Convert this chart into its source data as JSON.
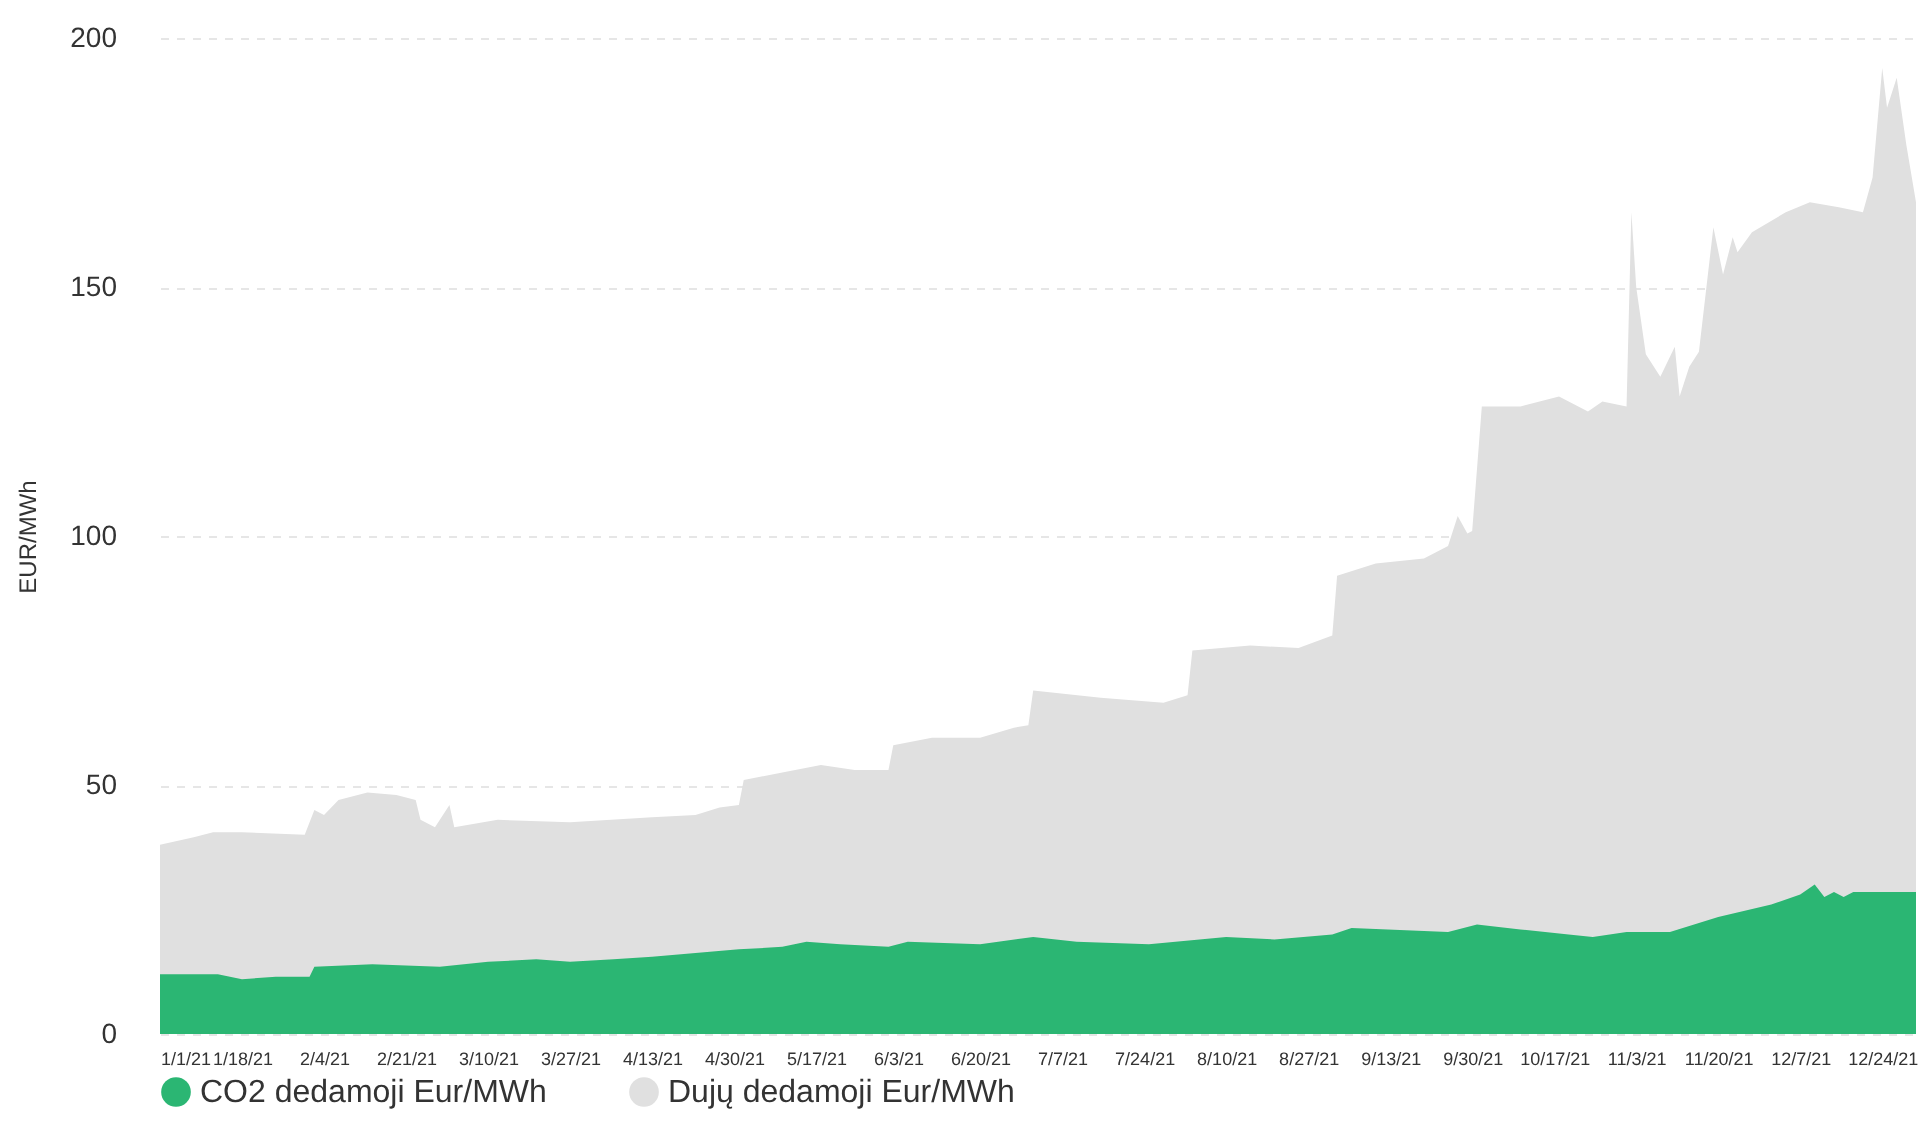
{
  "chart_data": {
    "type": "area",
    "ylabel": "EUR/MWh",
    "legend": "bottom",
    "grid": "y",
    "xlim": [
      "2021-01-01",
      "2021-12-31"
    ],
    "ylim": [
      0,
      200
    ],
    "yticks": [
      0,
      50,
      100,
      150,
      200
    ],
    "xticks": [
      {
        "value": "2021-01-01",
        "label": "1/1/21"
      },
      {
        "value": "2021-01-18",
        "label": "1/18/21"
      },
      {
        "value": "2021-02-04",
        "label": "2/4/21"
      },
      {
        "value": "2021-02-21",
        "label": "2/21/21"
      },
      {
        "value": "2021-03-10",
        "label": "3/10/21"
      },
      {
        "value": "2021-03-27",
        "label": "3/27/21"
      },
      {
        "value": "2021-04-13",
        "label": "4/13/21"
      },
      {
        "value": "2021-04-30",
        "label": "4/30/21"
      },
      {
        "value": "2021-05-17",
        "label": "5/17/21"
      },
      {
        "value": "2021-06-03",
        "label": "6/3/21"
      },
      {
        "value": "2021-06-20",
        "label": "6/20/21"
      },
      {
        "value": "2021-07-07",
        "label": "7/7/21"
      },
      {
        "value": "2021-07-24",
        "label": "7/24/21"
      },
      {
        "value": "2021-08-10",
        "label": "8/10/21"
      },
      {
        "value": "2021-08-27",
        "label": "8/27/21"
      },
      {
        "value": "2021-09-13",
        "label": "9/13/21"
      },
      {
        "value": "2021-09-30",
        "label": "9/30/21"
      },
      {
        "value": "2021-10-17",
        "label": "10/17/21"
      },
      {
        "value": "2021-11-03",
        "label": "11/3/21"
      },
      {
        "value": "2021-11-20",
        "label": "11/20/21"
      },
      {
        "value": "2021-12-07",
        "label": "12/7/21"
      },
      {
        "value": "2021-12-24",
        "label": "12/24/21"
      }
    ],
    "series": [
      {
        "name": "CO2 dedamoji Eur/MWh",
        "color": "#2bb673",
        "x": [
          "2021-01-01",
          "2021-01-13",
          "2021-01-18",
          "2021-01-25",
          "2021-02-01",
          "2021-02-02",
          "2021-02-14",
          "2021-02-28",
          "2021-03-10",
          "2021-03-20",
          "2021-03-27",
          "2021-04-05",
          "2021-04-13",
          "2021-04-25",
          "2021-05-01",
          "2021-05-10",
          "2021-05-15",
          "2021-05-22",
          "2021-06-01",
          "2021-06-05",
          "2021-06-20",
          "2021-07-01",
          "2021-07-10",
          "2021-07-25",
          "2021-08-10",
          "2021-08-20",
          "2021-09-01",
          "2021-09-05",
          "2021-09-25",
          "2021-10-01",
          "2021-10-10",
          "2021-10-20",
          "2021-10-25",
          "2021-11-01",
          "2021-11-10",
          "2021-11-20",
          "2021-12-01",
          "2021-12-07",
          "2021-12-10",
          "2021-12-12",
          "2021-12-14",
          "2021-12-16",
          "2021-12-18",
          "2021-12-31"
        ],
        "values": [
          12,
          12,
          11,
          11.5,
          11.5,
          13.5,
          14,
          13.5,
          14.5,
          15,
          14.5,
          15,
          15.5,
          16.5,
          17,
          17.5,
          18.5,
          18,
          17.5,
          18.5,
          18,
          19.5,
          18.5,
          18,
          19.5,
          19,
          20,
          21.3,
          20.5,
          22,
          21,
          20,
          19.5,
          20.5,
          20.5,
          23.5,
          26,
          28,
          30,
          27.5,
          28.5,
          27.5,
          28.5,
          28.5
        ]
      },
      {
        "name": "Dujų dedamoji Eur/MWh",
        "color": "#e0e0e0",
        "x": [
          "2021-01-01",
          "2021-01-08",
          "2021-01-12",
          "2021-01-18",
          "2021-01-31",
          "2021-02-02",
          "2021-02-04",
          "2021-02-07",
          "2021-02-13",
          "2021-02-19",
          "2021-02-23",
          "2021-02-24",
          "2021-02-27",
          "2021-03-02",
          "2021-03-03",
          "2021-03-12",
          "2021-03-27",
          "2021-04-13",
          "2021-04-22",
          "2021-04-27",
          "2021-05-01",
          "2021-05-02",
          "2021-05-10",
          "2021-05-18",
          "2021-05-25",
          "2021-06-01",
          "2021-06-02",
          "2021-06-10",
          "2021-06-20",
          "2021-06-27",
          "2021-06-30",
          "2021-07-01",
          "2021-07-15",
          "2021-07-28",
          "2021-08-02",
          "2021-08-03",
          "2021-08-15",
          "2021-08-25",
          "2021-09-01",
          "2021-09-02",
          "2021-09-10",
          "2021-09-20",
          "2021-09-25",
          "2021-09-27",
          "2021-09-29",
          "2021-09-30",
          "2021-10-02",
          "2021-10-10",
          "2021-10-18",
          "2021-10-24",
          "2021-10-27",
          "2021-11-01",
          "2021-11-02",
          "2021-11-03",
          "2021-11-05",
          "2021-11-08",
          "2021-11-11",
          "2021-11-12",
          "2021-11-14",
          "2021-11-16",
          "2021-11-19",
          "2021-11-21",
          "2021-11-23",
          "2021-11-24",
          "2021-11-27",
          "2021-12-04",
          "2021-12-09",
          "2021-12-15",
          "2021-12-20",
          "2021-12-22",
          "2021-12-24",
          "2021-12-25",
          "2021-12-27",
          "2021-12-29",
          "2021-12-31"
        ],
        "values": [
          38,
          39.5,
          40.5,
          40.5,
          40,
          45,
          44,
          47,
          48.5,
          48,
          47,
          43,
          41.5,
          46,
          41.5,
          43,
          42.5,
          43.5,
          44,
          45.5,
          46,
          51,
          52.5,
          54,
          53,
          53,
          58,
          59.5,
          59.5,
          61.5,
          62,
          69,
          67.5,
          66.5,
          68,
          77,
          78,
          77.5,
          80,
          92,
          94.5,
          95.5,
          98,
          104,
          100.5,
          101,
          126,
          126,
          128,
          125,
          127,
          126,
          165,
          150,
          136.5,
          132,
          138,
          128,
          134,
          137,
          162,
          152.5,
          160,
          157,
          161,
          165,
          167,
          166,
          165,
          172,
          194,
          186,
          192,
          178.5,
          167
        ]
      }
    ]
  }
}
